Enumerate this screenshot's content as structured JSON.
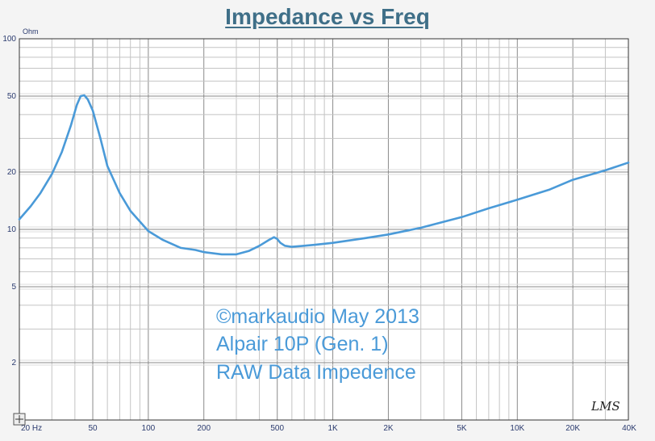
{
  "chart_data": {
    "type": "line",
    "title": "Impedance vs Freq",
    "ylabel": "Ohm",
    "xlabel": "",
    "x_scale": "log",
    "y_scale": "log",
    "xlim": [
      20,
      40000
    ],
    "ylim": [
      1,
      100
    ],
    "grid": true,
    "x_ticks": [
      {
        "value": 20,
        "label": "20 Hz"
      },
      {
        "value": 50,
        "label": "50"
      },
      {
        "value": 100,
        "label": "100"
      },
      {
        "value": 200,
        "label": "200"
      },
      {
        "value": 500,
        "label": "500"
      },
      {
        "value": 1000,
        "label": "1K"
      },
      {
        "value": 2000,
        "label": "2K"
      },
      {
        "value": 5000,
        "label": "5K"
      },
      {
        "value": 10000,
        "label": "10K"
      },
      {
        "value": 20000,
        "label": "20K"
      },
      {
        "value": 40000,
        "label": "40K"
      }
    ],
    "y_ticks": [
      {
        "value": 100,
        "label": "100"
      },
      {
        "value": 50,
        "label": "50"
      },
      {
        "value": 20,
        "label": "20"
      },
      {
        "value": 10,
        "label": "10"
      },
      {
        "value": 5,
        "label": "5"
      },
      {
        "value": 2,
        "label": "2"
      }
    ],
    "series": [
      {
        "color": "#4a9ad8",
        "x": [
          20,
          23,
          26,
          30,
          34,
          38,
          41,
          43,
          45,
          47,
          50,
          55,
          60,
          70,
          80,
          100,
          120,
          150,
          180,
          200,
          250,
          300,
          350,
          400,
          450,
          480,
          500,
          520,
          550,
          600,
          700,
          800,
          1000,
          1500,
          2000,
          3000,
          5000,
          7000,
          10000,
          15000,
          20000,
          30000,
          40000
        ],
        "y": [
          11.3,
          13.2,
          15.5,
          19.5,
          25.5,
          35,
          45,
          50,
          50.5,
          48,
          42,
          30,
          21.5,
          15.5,
          12.5,
          9.8,
          8.8,
          8.0,
          7.8,
          7.6,
          7.4,
          7.4,
          7.7,
          8.2,
          8.8,
          9.1,
          8.9,
          8.5,
          8.2,
          8.1,
          8.2,
          8.3,
          8.5,
          9.0,
          9.4,
          10.2,
          11.6,
          12.9,
          14.3,
          16.2,
          18.2,
          20.4,
          22.4
        ]
      }
    ],
    "annotations": [
      "©markaudio May 2013",
      "Alpair 10P (Gen. 1)",
      "RAW Data Impedence"
    ],
    "signature": "LMS"
  }
}
